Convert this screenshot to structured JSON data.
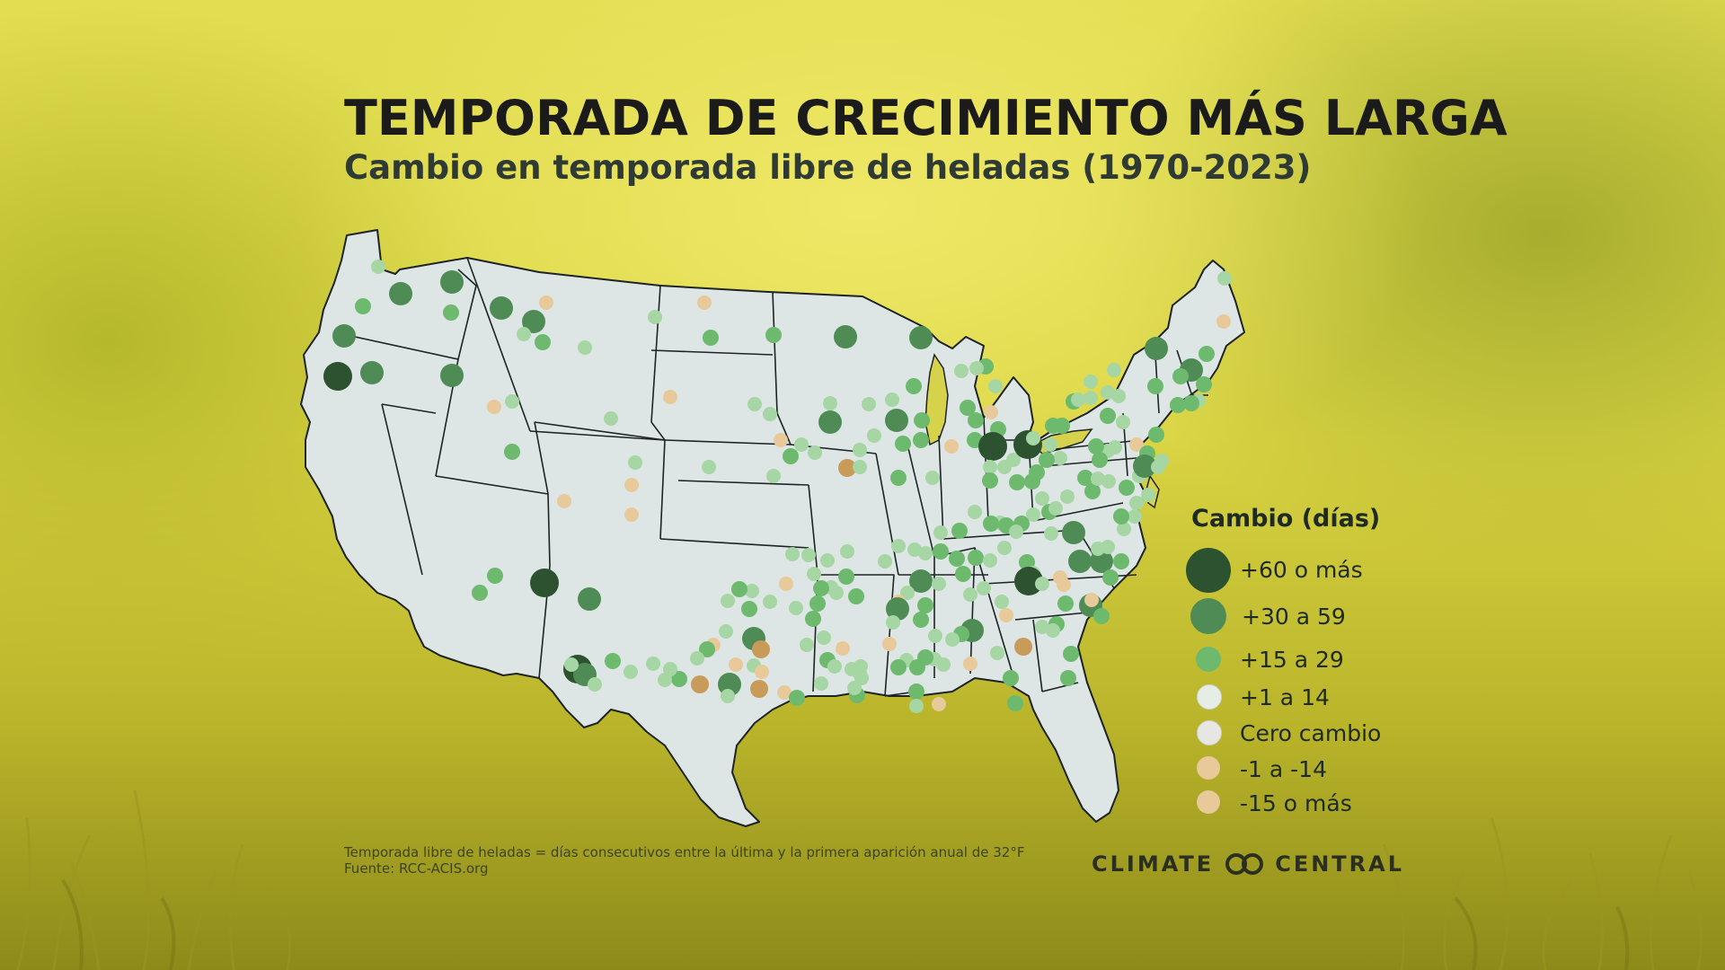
{
  "title": "TEMPORADA DE CRECIMIENTO MÁS LARGA",
  "subtitle": "Cambio en temporada libre de heladas (1970-2023)",
  "legend": {
    "title": "Cambio (días)",
    "items": [
      {
        "label": "+60 o más",
        "color": "#2c5230",
        "category": "60plus"
      },
      {
        "label": "+30 a 59",
        "color": "#4f8c55",
        "category": "30to59"
      },
      {
        "label": "+15 a 29",
        "color": "#6dba6f",
        "category": "15to29"
      },
      {
        "label": "+1 a 14",
        "color": "#e6ede6",
        "category": "1to14"
      },
      {
        "label": "Cero cambio",
        "color": "#e6e6e4",
        "category": "zero"
      },
      {
        "label": "-1 a -14",
        "color": "#e8c99a",
        "category": "neg1to14"
      },
      {
        "label": "-15 o más",
        "color": "#e8c99a",
        "category": "neg15plus"
      }
    ]
  },
  "footnote": {
    "line1": "Temporada libre de heladas = días consecutivos entre la última y la primera aparición anual de 32°F",
    "line2": "Fuente: RCC-ACIS.org"
  },
  "brand": {
    "left": "CLIMATE",
    "right": "CENTRAL"
  },
  "colors": {
    "land": "#dde5e5",
    "border": "#1e2326",
    "title": "#1b1b1b",
    "dark_green": "#2c5230",
    "mid_green": "#4f8c55",
    "green": "#6dba6f",
    "light_green": "#a6d6a3",
    "tan": "#e8c99a",
    "brown": "#c99b58"
  }
}
